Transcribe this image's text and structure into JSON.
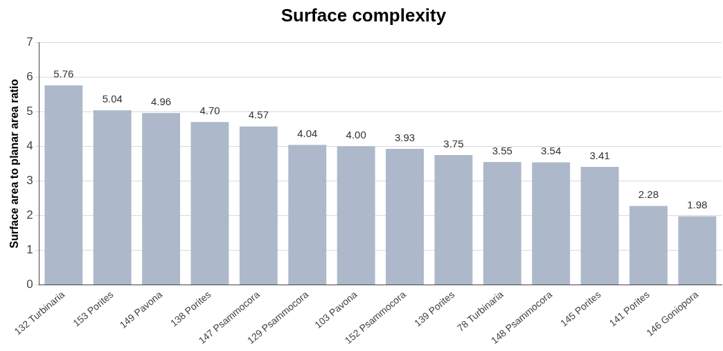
{
  "chart_data": {
    "type": "bar",
    "title": "Surface complexity",
    "ylabel": "Surface area to planar area ratio",
    "categories": [
      "132 Turbinaria",
      "153 Porites",
      "149 Pavona",
      "138 Porites",
      "147 Psammocora",
      "129 Psammocora",
      "103 Pavona",
      "152 Psammocora",
      "139 Porites",
      "78 Turbinaria",
      "148 Psammocora",
      "145 Porites",
      "141 Porites",
      "146 Goniopora"
    ],
    "values": [
      5.76,
      5.04,
      4.96,
      4.7,
      4.57,
      4.04,
      4.0,
      3.93,
      3.75,
      3.55,
      3.54,
      3.41,
      2.28,
      1.98
    ],
    "value_labels": [
      "5.76",
      "5.04",
      "4.96",
      "4.70",
      "4.57",
      "4.04",
      "4.00",
      "3.93",
      "3.75",
      "3.55",
      "3.54",
      "3.41",
      "2.28",
      "1.98"
    ],
    "color": "#adb9ca",
    "ylim": [
      0,
      7
    ],
    "yticks": [
      0,
      1,
      2,
      3,
      4,
      5,
      6,
      7
    ],
    "grid": "y",
    "legend": false
  }
}
